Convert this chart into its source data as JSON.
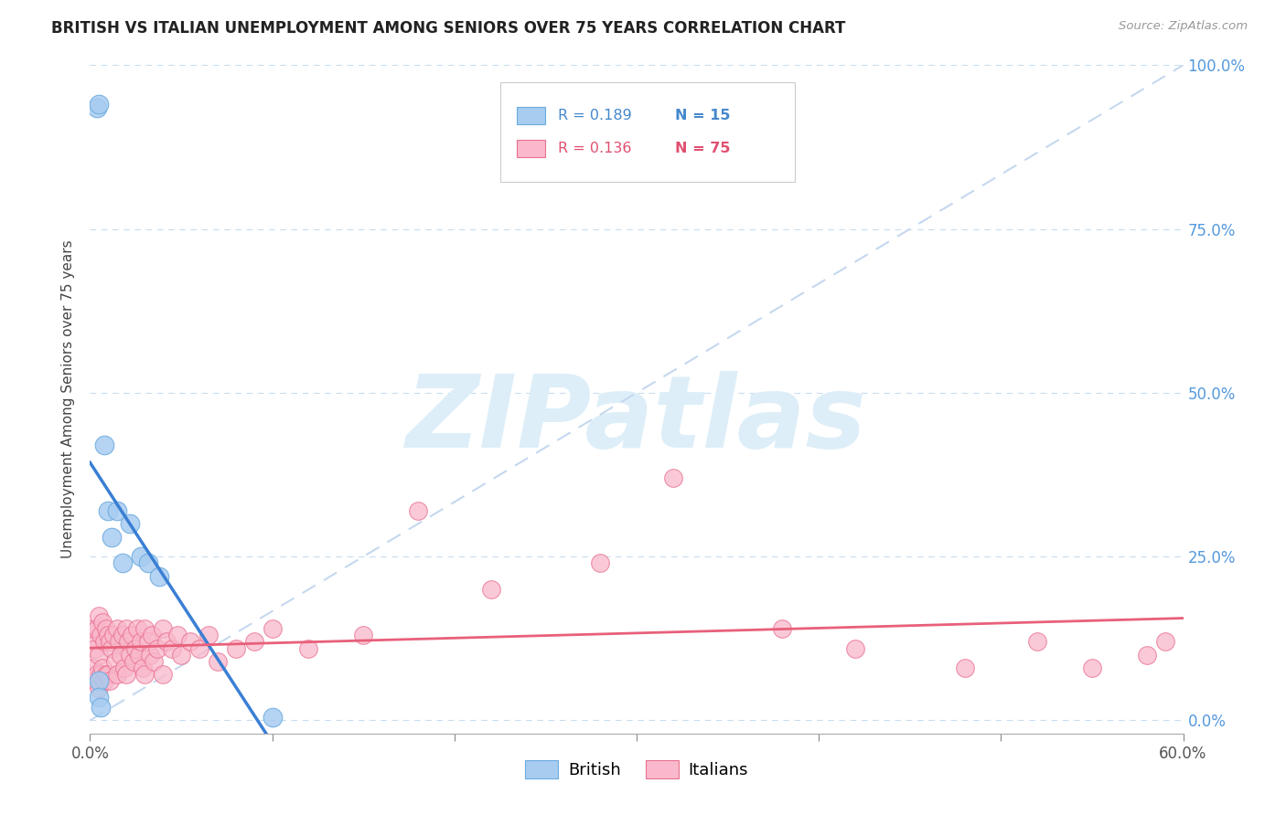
{
  "title": "BRITISH VS ITALIAN UNEMPLOYMENT AMONG SENIORS OVER 75 YEARS CORRELATION CHART",
  "source": "Source: ZipAtlas.com",
  "ylabel": "Unemployment Among Seniors over 75 years",
  "xlim": [
    0.0,
    0.6
  ],
  "ylim": [
    -0.02,
    1.0
  ],
  "xtick_vals": [
    0.0,
    0.1,
    0.2,
    0.3,
    0.4,
    0.5,
    0.6
  ],
  "xtick_labels": [
    "0.0%",
    "",
    "",
    "",
    "",
    "",
    "60.0%"
  ],
  "ytick_right_vals": [
    0.0,
    0.25,
    0.5,
    0.75,
    1.0
  ],
  "ytick_right_labels": [
    "0.0%",
    "25.0%",
    "50.0%",
    "75.0%",
    "100.0%"
  ],
  "R_british": 0.189,
  "N_british": 15,
  "R_italian": 0.136,
  "N_italian": 75,
  "british_fill": "#a8ccf0",
  "british_edge": "#6aaae0",
  "italian_fill": "#f9b8cb",
  "italian_edge": "#e87090",
  "british_line_color": "#3a7fd4",
  "italian_line_color": "#e8607a",
  "diagonal_color": "#c5d8ef",
  "watermark_color": "#ddeef8",
  "watermark_text": "ZIPatlas",
  "legend_british": "British",
  "legend_italian": "Italians",
  "british_x": [
    0.004,
    0.005,
    0.008,
    0.01,
    0.012,
    0.015,
    0.018,
    0.022,
    0.028,
    0.032,
    0.038,
    0.005,
    0.005,
    0.006,
    0.1
  ],
  "british_y": [
    0.935,
    0.94,
    0.42,
    0.32,
    0.28,
    0.32,
    0.24,
    0.3,
    0.25,
    0.24,
    0.22,
    0.06,
    0.035,
    0.02,
    0.005
  ],
  "italian_x": [
    0.001,
    0.002,
    0.002,
    0.003,
    0.003,
    0.004,
    0.004,
    0.005,
    0.005,
    0.005,
    0.006,
    0.006,
    0.007,
    0.007,
    0.008,
    0.008,
    0.009,
    0.009,
    0.01,
    0.01,
    0.011,
    0.011,
    0.012,
    0.013,
    0.014,
    0.015,
    0.015,
    0.016,
    0.017,
    0.018,
    0.019,
    0.02,
    0.02,
    0.021,
    0.022,
    0.023,
    0.024,
    0.025,
    0.026,
    0.027,
    0.028,
    0.029,
    0.03,
    0.03,
    0.032,
    0.033,
    0.034,
    0.035,
    0.037,
    0.04,
    0.04,
    0.042,
    0.045,
    0.048,
    0.05,
    0.055,
    0.06,
    0.065,
    0.07,
    0.08,
    0.09,
    0.1,
    0.12,
    0.15,
    0.18,
    0.22,
    0.28,
    0.32,
    0.38,
    0.42,
    0.48,
    0.52,
    0.55,
    0.58,
    0.59
  ],
  "italian_y": [
    0.12,
    0.14,
    0.08,
    0.11,
    0.06,
    0.14,
    0.07,
    0.16,
    0.1,
    0.05,
    0.13,
    0.07,
    0.15,
    0.08,
    0.12,
    0.06,
    0.14,
    0.07,
    0.13,
    0.07,
    0.12,
    0.06,
    0.11,
    0.13,
    0.09,
    0.14,
    0.07,
    0.12,
    0.1,
    0.13,
    0.08,
    0.14,
    0.07,
    0.12,
    0.1,
    0.13,
    0.09,
    0.11,
    0.14,
    0.1,
    0.12,
    0.08,
    0.14,
    0.07,
    0.12,
    0.1,
    0.13,
    0.09,
    0.11,
    0.14,
    0.07,
    0.12,
    0.11,
    0.13,
    0.1,
    0.12,
    0.11,
    0.13,
    0.09,
    0.11,
    0.12,
    0.14,
    0.11,
    0.13,
    0.32,
    0.2,
    0.24,
    0.37,
    0.14,
    0.11,
    0.08,
    0.12,
    0.08,
    0.1,
    0.12
  ]
}
